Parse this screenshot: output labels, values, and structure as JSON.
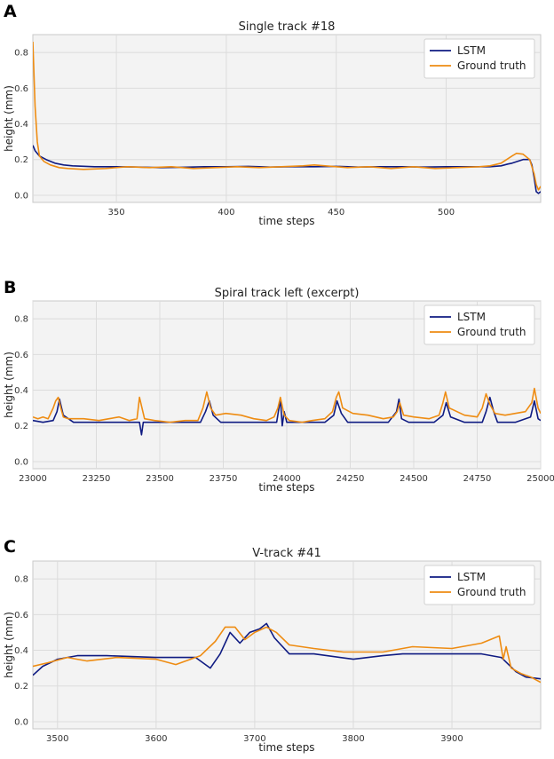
{
  "colors": {
    "lstm": "#0f1b82",
    "ground_truth": "#ee8c12"
  },
  "chart_data": [
    {
      "panel": "A",
      "type": "line",
      "title": "Single track #18",
      "xlabel": "time steps",
      "ylabel": "height (mm)",
      "xlim": [
        312,
        543
      ],
      "ylim": [
        -0.04,
        0.9
      ],
      "xticks": [
        350,
        400,
        450,
        500
      ],
      "yticks": [
        0.0,
        0.2,
        0.4,
        0.6,
        0.8
      ],
      "ytick_labels": [
        "0.0",
        "0.2",
        "0.4",
        "0.6",
        "0.8"
      ],
      "legend": {
        "position": "top-right",
        "entries": [
          "LSTM",
          "Ground truth"
        ]
      },
      "series": [
        {
          "name": "LSTM",
          "x": [
            312,
            313,
            315,
            318,
            322,
            326,
            330,
            340,
            350,
            360,
            370,
            380,
            390,
            400,
            410,
            420,
            430,
            440,
            450,
            460,
            470,
            480,
            490,
            500,
            510,
            520,
            525,
            528,
            530,
            535,
            538,
            539,
            540,
            541,
            542,
            543
          ],
          "y": [
            0.28,
            0.25,
            0.22,
            0.2,
            0.18,
            0.17,
            0.165,
            0.16,
            0.16,
            0.158,
            0.155,
            0.157,
            0.16,
            0.16,
            0.162,
            0.158,
            0.16,
            0.16,
            0.162,
            0.158,
            0.16,
            0.16,
            0.158,
            0.16,
            0.16,
            0.16,
            0.165,
            0.175,
            0.18,
            0.2,
            0.2,
            0.17,
            0.1,
            0.02,
            0.01,
            0.02
          ]
        },
        {
          "name": "Ground truth",
          "x": [
            312,
            313,
            314,
            315,
            317,
            320,
            324,
            328,
            335,
            345,
            355,
            365,
            375,
            385,
            395,
            405,
            415,
            425,
            435,
            440,
            445,
            455,
            465,
            475,
            485,
            495,
            505,
            515,
            520,
            525,
            530,
            532,
            535,
            538,
            540,
            541,
            542,
            543
          ],
          "y": [
            0.86,
            0.5,
            0.3,
            0.22,
            0.19,
            0.17,
            0.155,
            0.15,
            0.145,
            0.15,
            0.16,
            0.155,
            0.16,
            0.15,
            0.155,
            0.16,
            0.155,
            0.16,
            0.165,
            0.17,
            0.165,
            0.155,
            0.16,
            0.15,
            0.16,
            0.15,
            0.155,
            0.16,
            0.165,
            0.18,
            0.22,
            0.235,
            0.23,
            0.2,
            0.12,
            0.06,
            0.03,
            0.05
          ]
        }
      ]
    },
    {
      "panel": "B",
      "type": "line",
      "title": "Spiral track left (excerpt)",
      "xlabel": "time steps",
      "ylabel": "height (mm)",
      "xlim": [
        23000,
        25000
      ],
      "ylim": [
        -0.04,
        0.9
      ],
      "xticks": [
        23000,
        23250,
        23500,
        23750,
        24000,
        24250,
        24500,
        24750,
        25000
      ],
      "yticks": [
        0.0,
        0.2,
        0.4,
        0.6,
        0.8
      ],
      "ytick_labels": [
        "0.0",
        "0.2",
        "0.4",
        "0.6",
        "0.8"
      ],
      "legend": {
        "position": "top-right",
        "entries": [
          "LSTM",
          "Ground truth"
        ]
      },
      "series": [
        {
          "name": "LSTM",
          "x": [
            23000,
            23040,
            23080,
            23095,
            23105,
            23120,
            23160,
            23300,
            23420,
            23428,
            23435,
            23460,
            23600,
            23660,
            23680,
            23695,
            23710,
            23740,
            23860,
            23960,
            23975,
            23982,
            23990,
            24000,
            24020,
            24150,
            24185,
            24198,
            24215,
            24240,
            24400,
            24432,
            24442,
            24452,
            24480,
            24580,
            24615,
            24628,
            24645,
            24700,
            24770,
            24785,
            24800,
            24815,
            24830,
            24900,
            24960,
            24975,
            24990,
            25000
          ],
          "y": [
            0.23,
            0.22,
            0.23,
            0.28,
            0.35,
            0.26,
            0.22,
            0.22,
            0.22,
            0.15,
            0.22,
            0.22,
            0.22,
            0.22,
            0.28,
            0.34,
            0.26,
            0.22,
            0.22,
            0.22,
            0.35,
            0.2,
            0.28,
            0.22,
            0.22,
            0.22,
            0.26,
            0.34,
            0.27,
            0.22,
            0.22,
            0.28,
            0.35,
            0.24,
            0.22,
            0.22,
            0.26,
            0.33,
            0.25,
            0.22,
            0.22,
            0.28,
            0.36,
            0.28,
            0.22,
            0.22,
            0.25,
            0.34,
            0.24,
            0.23
          ]
        },
        {
          "name": "Ground truth",
          "x": [
            23000,
            23020,
            23040,
            23060,
            23080,
            23090,
            23100,
            23110,
            23120,
            23140,
            23200,
            23260,
            23300,
            23340,
            23380,
            23410,
            23420,
            23440,
            23480,
            23540,
            23600,
            23650,
            23670,
            23685,
            23700,
            23720,
            23760,
            23820,
            23870,
            23920,
            23950,
            23965,
            23975,
            23990,
            24010,
            24060,
            24100,
            24150,
            24180,
            24195,
            24205,
            24220,
            24260,
            24320,
            24380,
            24420,
            24435,
            24445,
            24460,
            24500,
            24560,
            24600,
            24615,
            24625,
            24640,
            24700,
            24750,
            24770,
            24785,
            24800,
            24820,
            24860,
            24900,
            24940,
            24965,
            24975,
            24990,
            25000
          ],
          "y": [
            0.25,
            0.24,
            0.25,
            0.24,
            0.3,
            0.34,
            0.36,
            0.3,
            0.25,
            0.24,
            0.24,
            0.23,
            0.24,
            0.25,
            0.23,
            0.24,
            0.36,
            0.24,
            0.23,
            0.22,
            0.23,
            0.23,
            0.3,
            0.39,
            0.3,
            0.26,
            0.27,
            0.26,
            0.24,
            0.23,
            0.25,
            0.3,
            0.36,
            0.26,
            0.23,
            0.22,
            0.23,
            0.24,
            0.28,
            0.36,
            0.39,
            0.3,
            0.27,
            0.26,
            0.24,
            0.25,
            0.28,
            0.33,
            0.26,
            0.25,
            0.24,
            0.26,
            0.33,
            0.39,
            0.3,
            0.26,
            0.25,
            0.3,
            0.38,
            0.32,
            0.27,
            0.26,
            0.27,
            0.28,
            0.33,
            0.41,
            0.3,
            0.27
          ]
        }
      ]
    },
    {
      "panel": "C",
      "type": "line",
      "title": "V-track #41",
      "xlabel": "time steps",
      "ylabel": "height (mm)",
      "xlim": [
        3475,
        3990
      ],
      "ylim": [
        -0.04,
        0.9
      ],
      "xticks": [
        3500,
        3600,
        3700,
        3800,
        3900
      ],
      "yticks": [
        0.0,
        0.2,
        0.4,
        0.6,
        0.8
      ],
      "ytick_labels": [
        "0.0",
        "0.2",
        "0.4",
        "0.6",
        "0.8"
      ],
      "legend": {
        "position": "top-right",
        "entries": [
          "LSTM",
          "Ground truth"
        ]
      },
      "series": [
        {
          "name": "LSTM",
          "x": [
            3475,
            3485,
            3500,
            3520,
            3550,
            3600,
            3640,
            3655,
            3665,
            3675,
            3685,
            3695,
            3705,
            3712,
            3720,
            3735,
            3760,
            3800,
            3830,
            3850,
            3880,
            3900,
            3930,
            3950,
            3965,
            3975,
            3990
          ],
          "y": [
            0.26,
            0.31,
            0.35,
            0.37,
            0.37,
            0.36,
            0.36,
            0.3,
            0.38,
            0.5,
            0.44,
            0.5,
            0.52,
            0.55,
            0.47,
            0.38,
            0.38,
            0.35,
            0.37,
            0.38,
            0.38,
            0.38,
            0.38,
            0.36,
            0.28,
            0.25,
            0.24
          ]
        },
        {
          "name": "Ground truth",
          "x": [
            3475,
            3490,
            3510,
            3530,
            3560,
            3600,
            3620,
            3645,
            3660,
            3670,
            3680,
            3690,
            3700,
            3712,
            3722,
            3735,
            3760,
            3790,
            3830,
            3860,
            3900,
            3930,
            3948,
            3952,
            3955,
            3960,
            3970,
            3980,
            3990
          ],
          "y": [
            0.31,
            0.33,
            0.36,
            0.34,
            0.36,
            0.35,
            0.32,
            0.37,
            0.45,
            0.53,
            0.53,
            0.46,
            0.5,
            0.53,
            0.5,
            0.43,
            0.41,
            0.39,
            0.39,
            0.42,
            0.41,
            0.44,
            0.48,
            0.35,
            0.42,
            0.3,
            0.27,
            0.25,
            0.22
          ]
        }
      ]
    }
  ]
}
